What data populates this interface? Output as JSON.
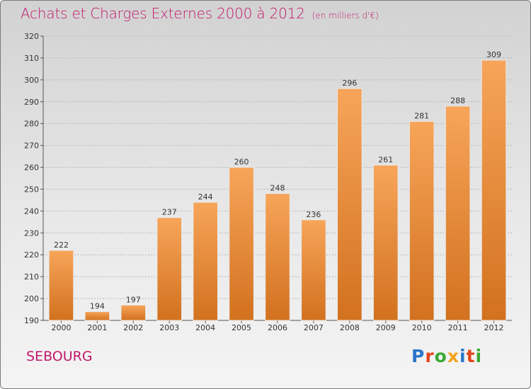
{
  "header": {
    "title": "Achats et Charges Externes 2000 à 2012",
    "unit": "(en milliers d'€)"
  },
  "footer": {
    "commune": "SEBOURG",
    "logo_letters": [
      {
        "char": "P",
        "color": "#2b76c9"
      },
      {
        "char": "r",
        "color": "#e2461c"
      },
      {
        "char": "o",
        "color": "#39a935"
      },
      {
        "char": "x",
        "color": "#f3a21b"
      },
      {
        "char": "i",
        "color": "#2b76c9"
      },
      {
        "char": "t",
        "color": "#e2461c"
      },
      {
        "char": "i",
        "color": "#39a935"
      }
    ]
  },
  "chart_data": {
    "type": "bar",
    "title": "Achats et Charges Externes 2000 à 2012",
    "subtitle": "(en milliers d'€)",
    "xlabel": "",
    "ylabel": "",
    "categories": [
      "2000",
      "2001",
      "2002",
      "2003",
      "2004",
      "2005",
      "2006",
      "2007",
      "2008",
      "2009",
      "2010",
      "2011",
      "2012"
    ],
    "values": [
      222,
      194,
      197,
      237,
      244,
      260,
      248,
      236,
      296,
      261,
      281,
      288,
      309
    ],
    "ylim": [
      190,
      320
    ],
    "yticks": [
      190,
      200,
      210,
      220,
      230,
      240,
      250,
      260,
      270,
      280,
      290,
      300,
      310,
      320
    ],
    "grid": true,
    "legend": "none",
    "bar_color_top": "#f7a55a",
    "bar_color_bottom": "#d2711e",
    "grid_color": "#b8b8b8"
  }
}
